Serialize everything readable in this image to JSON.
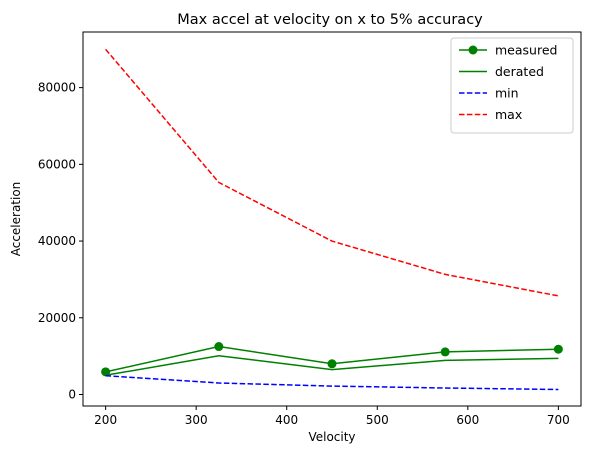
{
  "chart_data": {
    "type": "line",
    "title": "Max accel at velocity on x to 5% accuracy",
    "xlabel": "Velocity",
    "ylabel": "Acceleration",
    "xlim": [
      175,
      725
    ],
    "ylim": [
      -3000,
      94500
    ],
    "x_ticks": [
      200,
      300,
      400,
      500,
      600,
      700
    ],
    "y_ticks": [
      0,
      20000,
      40000,
      60000,
      80000
    ],
    "x": [
      200,
      325,
      450,
      575,
      700
    ],
    "grid": false,
    "legend_position": "upper right",
    "series": [
      {
        "name": "measured",
        "values": [
          5900,
          12500,
          8000,
          11100,
          11800
        ],
        "color": "#008000",
        "style": "solid",
        "marker": "circle"
      },
      {
        "name": "derated",
        "values": [
          5000,
          10100,
          6500,
          8900,
          9400
        ],
        "color": "#008000",
        "style": "solid",
        "marker": "none"
      },
      {
        "name": "min",
        "values": [
          4900,
          3000,
          2200,
          1700,
          1300
        ],
        "color": "#0000ff",
        "style": "dashed",
        "marker": "none"
      },
      {
        "name": "max",
        "values": [
          90000,
          55300,
          40000,
          31300,
          25700
        ],
        "color": "#ff0000",
        "style": "dashed",
        "marker": "none"
      }
    ]
  }
}
